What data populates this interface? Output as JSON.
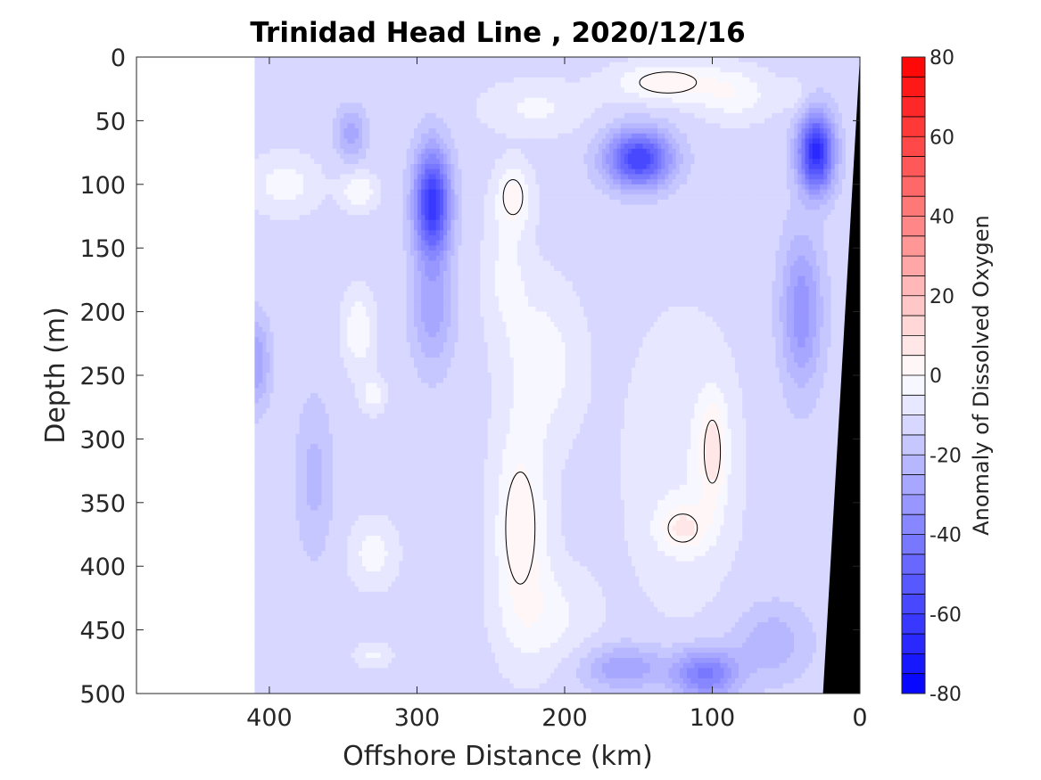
{
  "chart_data": {
    "type": "heatmap",
    "subtype": "filled-contour-section",
    "title": "Trinidad Head Line , 2020/12/16",
    "xlabel": "Offshore Distance (km)",
    "ylabel": "Depth (m)",
    "xlim": [
      490,
      0
    ],
    "ylim": [
      500,
      0
    ],
    "x_reversed": true,
    "y_reversed": true,
    "x_ticks": [
      400,
      300,
      200,
      100,
      0
    ],
    "y_ticks": [
      0,
      50,
      100,
      150,
      200,
      250,
      300,
      350,
      400,
      450,
      500
    ],
    "grid": false,
    "colorbar": {
      "label": "Anomaly of Dissolved Oxygen",
      "range": [
        -80,
        80
      ],
      "ticks": [
        80,
        60,
        40,
        20,
        0,
        -20,
        -40,
        -60,
        -80
      ],
      "levels": 32,
      "colormap": "blue-white-red",
      "color_min": "#0000ff",
      "color_zero": "#ffffff",
      "color_max": "#ff0000"
    },
    "data_extent_km": [
      0,
      410
    ],
    "zero_contour_line_color": "#000000",
    "bathymetry_color": "#000000",
    "bathymetry": {
      "distance_km": [
        0,
        0,
        25,
        0
      ],
      "depth_m": [
        0,
        0,
        500,
        500
      ]
    },
    "field": {
      "background_value": -12,
      "features": [
        {
          "x": 150,
          "y": 80,
          "sx": 22,
          "sy": 22,
          "value": -48,
          "note": "core 150km"
        },
        {
          "x": 30,
          "y": 75,
          "sx": 12,
          "sy": 30,
          "value": -55,
          "note": "core nearshore"
        },
        {
          "x": 290,
          "y": 115,
          "sx": 12,
          "sy": 42,
          "value": -52,
          "note": "core 290km"
        },
        {
          "x": 290,
          "y": 200,
          "sx": 14,
          "sy": 45,
          "value": -16
        },
        {
          "x": 40,
          "y": 200,
          "sx": 14,
          "sy": 60,
          "value": -22
        },
        {
          "x": 345,
          "y": 60,
          "sx": 10,
          "sy": 20,
          "value": -16
        },
        {
          "x": 105,
          "y": 485,
          "sx": 22,
          "sy": 20,
          "value": -30
        },
        {
          "x": 160,
          "y": 480,
          "sx": 28,
          "sy": 18,
          "value": -18
        },
        {
          "x": 60,
          "y": 460,
          "sx": 25,
          "sy": 30,
          "value": -12
        },
        {
          "x": 410,
          "y": 240,
          "sx": 10,
          "sy": 35,
          "value": -18
        },
        {
          "x": 370,
          "y": 330,
          "sx": 12,
          "sy": 60,
          "value": -10
        },
        {
          "x": 230,
          "y": 370,
          "sx": 18,
          "sy": 80,
          "value": 16
        },
        {
          "x": 235,
          "y": 110,
          "sx": 12,
          "sy": 25,
          "value": 14
        },
        {
          "x": 240,
          "y": 170,
          "sx": 15,
          "sy": 50,
          "value": 8
        },
        {
          "x": 215,
          "y": 240,
          "sx": 25,
          "sy": 60,
          "value": 10
        },
        {
          "x": 390,
          "y": 100,
          "sx": 22,
          "sy": 22,
          "value": 10
        },
        {
          "x": 340,
          "y": 105,
          "sx": 12,
          "sy": 14,
          "value": 12
        },
        {
          "x": 130,
          "y": 20,
          "sx": 35,
          "sy": 15,
          "value": 16
        },
        {
          "x": 85,
          "y": 30,
          "sx": 25,
          "sy": 20,
          "value": 10
        },
        {
          "x": 220,
          "y": 40,
          "sx": 35,
          "sy": 20,
          "value": 8
        },
        {
          "x": 340,
          "y": 215,
          "sx": 10,
          "sy": 30,
          "value": 12
        },
        {
          "x": 330,
          "y": 265,
          "sx": 8,
          "sy": 14,
          "value": 10
        },
        {
          "x": 330,
          "y": 390,
          "sx": 15,
          "sy": 25,
          "value": 10
        },
        {
          "x": 100,
          "y": 310,
          "sx": 10,
          "sy": 45,
          "value": 16
        },
        {
          "x": 120,
          "y": 370,
          "sx": 18,
          "sy": 20,
          "value": 14
        },
        {
          "x": 120,
          "y": 320,
          "sx": 40,
          "sy": 120,
          "value": 6
        },
        {
          "x": 210,
          "y": 440,
          "sx": 30,
          "sy": 40,
          "value": 8
        },
        {
          "x": 330,
          "y": 470,
          "sx": 12,
          "sy": 10,
          "value": 8
        },
        {
          "x": 45,
          "y": 30,
          "sx": 10,
          "sy": 12,
          "value": 6
        }
      ]
    }
  }
}
